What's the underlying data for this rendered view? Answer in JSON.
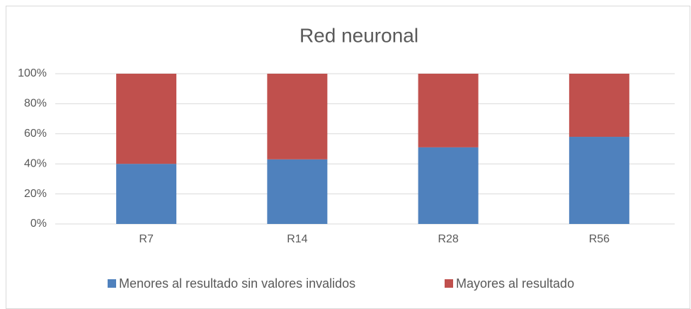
{
  "chart_data": {
    "type": "bar",
    "stacked": true,
    "title": "Red neuronal",
    "categories": [
      "R7",
      "R14",
      "R28",
      "R56"
    ],
    "series": [
      {
        "name": "Menores al resultado sin valores invalidos",
        "color": "#4f81bd",
        "values": [
          40,
          43,
          51,
          58
        ]
      },
      {
        "name": "Mayores al resultado",
        "color": "#c0504d",
        "values": [
          60,
          57,
          49,
          42
        ]
      }
    ],
    "ylim": [
      0,
      100
    ],
    "yticks": [
      {
        "value": 0,
        "label": "0%"
      },
      {
        "value": 20,
        "label": "20%"
      },
      {
        "value": 40,
        "label": "40%"
      },
      {
        "value": 60,
        "label": "60%"
      },
      {
        "value": 80,
        "label": "80%"
      },
      {
        "value": 100,
        "label": "100%"
      }
    ],
    "grid": true,
    "legend": "bottom"
  }
}
